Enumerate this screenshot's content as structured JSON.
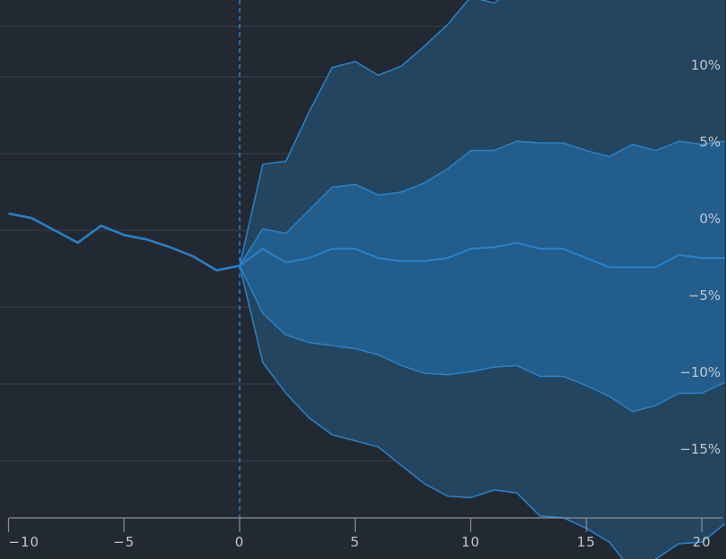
{
  "chart_data": {
    "type": "area",
    "x_ticks": [
      -10,
      -5,
      0,
      5,
      10,
      15,
      20
    ],
    "x_tick_labels": [
      "−10",
      "−5",
      "0",
      "5",
      "10",
      "15",
      "20"
    ],
    "y_ticks": [
      -15,
      -10,
      -5,
      0,
      5,
      10
    ],
    "y_tick_labels": [
      "−15%",
      "−10%",
      "−5%",
      "0%",
      "5%",
      "10%"
    ],
    "xlim": [
      -10.3,
      21
    ],
    "ylim": [
      -17.8,
      13.9
    ],
    "vline_x": 0,
    "history": {
      "x": [
        -10,
        -9,
        -8,
        -7,
        -6,
        -5,
        -4,
        -3,
        -2,
        -1,
        0
      ],
      "y": [
        1.1,
        0.8,
        0.0,
        -0.8,
        0.3,
        -0.3,
        -0.6,
        -1.1,
        -1.7,
        -2.6,
        -2.3
      ]
    },
    "forecast_x": [
      0,
      1,
      2,
      3,
      4,
      5,
      6,
      7,
      8,
      9,
      10,
      11,
      12,
      13,
      14,
      15,
      16,
      17,
      18,
      19,
      20,
      21
    ],
    "bands": [
      {
        "upper": [
          -2.3,
          4.3,
          4.5,
          7.7,
          10.6,
          11.0,
          10.1,
          10.7,
          12.0,
          13.4,
          15.2,
          14.8,
          15.8,
          15.9,
          16.0,
          15.5,
          15.2,
          16.8,
          15.9,
          16.4,
          16.0,
          15.8
        ],
        "lower": [
          -2.3,
          -8.6,
          -10.6,
          -12.2,
          -13.3,
          -13.7,
          -14.1,
          -15.3,
          -16.5,
          -17.3,
          -17.4,
          -16.9,
          -17.1,
          -18.6,
          -18.7,
          -19.4,
          -20.3,
          -22.2,
          -21.4,
          -20.4,
          -20.3,
          -19.1
        ]
      },
      {
        "upper": [
          -2.3,
          0.1,
          -0.2,
          1.3,
          2.8,
          3.0,
          2.3,
          2.5,
          3.1,
          4.0,
          5.2,
          5.2,
          5.8,
          5.7,
          5.7,
          5.2,
          4.8,
          5.6,
          5.2,
          5.8,
          5.6,
          5.8
        ],
        "lower": [
          -2.3,
          -5.4,
          -6.8,
          -7.3,
          -7.5,
          -7.7,
          -8.1,
          -8.8,
          -9.3,
          -9.4,
          -9.2,
          -8.9,
          -8.8,
          -9.5,
          -9.5,
          -10.1,
          -10.8,
          -11.8,
          -11.4,
          -10.6,
          -10.6,
          -9.9
        ]
      }
    ],
    "median": [
      -2.3,
      -1.2,
      -2.1,
      -1.8,
      -1.2,
      -1.2,
      -1.8,
      -2.0,
      -2.0,
      -1.8,
      -1.2,
      -1.1,
      -0.8,
      -1.2,
      -1.2,
      -1.8,
      -2.4,
      -2.4,
      -2.4,
      -1.6,
      -1.8,
      -1.8
    ],
    "colors": {
      "background": "#232933",
      "grid": "#3a414c",
      "axis": "#8a9099",
      "tick_label": "#c3c7cd",
      "line": "#2a7fc4",
      "band_outer": "#24455f",
      "band_inner": "#225d8c",
      "vline": "#2f86cf"
    },
    "grid": true
  }
}
